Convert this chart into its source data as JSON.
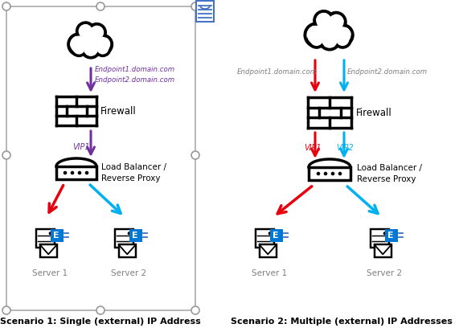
{
  "bg_color": "#ffffff",
  "title1": "Scenario 1: Single (external) IP Address",
  "title2": "Scenario 2: Multiple (external) IP Addresses",
  "s1_endpoint_text": "Endpoint1.domain.com\nEndpoint2.domain.com",
  "s1_vip_label": "VIP1",
  "s2_endpoint1_text": "Endpoint1.domain.com",
  "s2_endpoint2_text": "Endpoint2.domain.com",
  "s2_vip1_label": "VIP1",
  "s2_vip2_label": "VIP2",
  "red_color": "#e8000d",
  "cyan_color": "#00b0f0",
  "purple_color": "#7030a0",
  "gray_color": "#808080",
  "server1_label": "Server 1",
  "server2_label": "Server 2",
  "firewall_label": "Firewall",
  "lb_label": "Load Balancer /\nReverse Proxy",
  "doc_blue": "#4472C4",
  "border_gray": "#aaaaaa",
  "dot_gray": "#999999"
}
